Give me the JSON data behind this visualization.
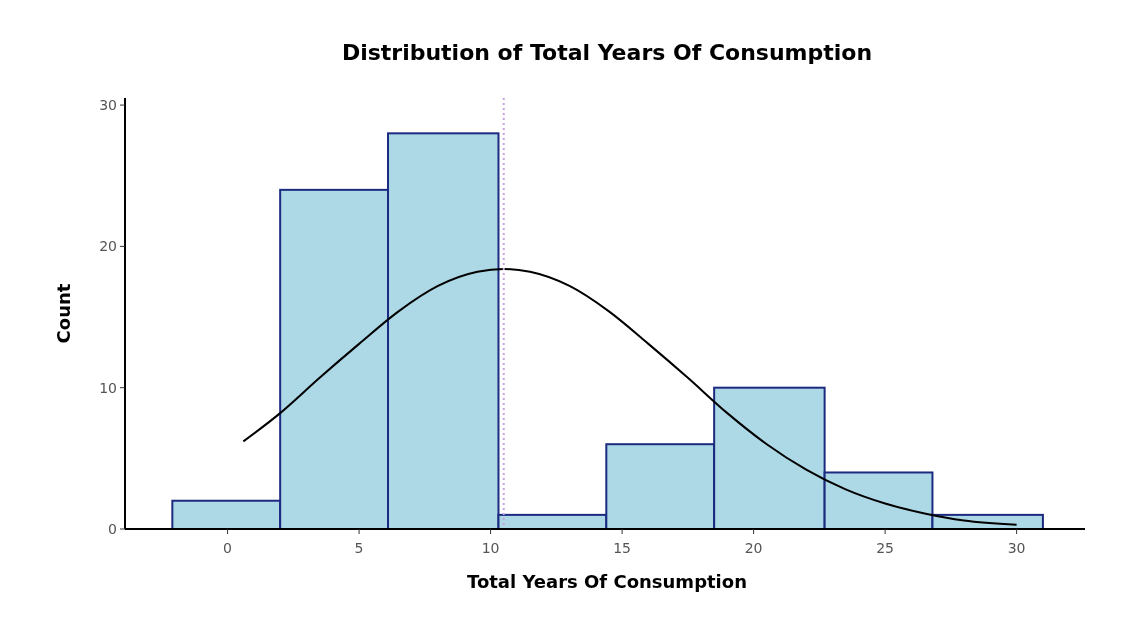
{
  "chart_data": {
    "type": "histogram",
    "title": "Distribution of Total Years Of Consumption",
    "xlabel": "Total Years Of Consumption",
    "ylabel": "Count",
    "xlim": [
      -3.9,
      32.6
    ],
    "xticks": [
      0,
      5,
      10,
      15,
      20,
      25,
      30
    ],
    "ylim": [
      0,
      30.5
    ],
    "yticks": [
      0,
      10,
      20,
      30
    ],
    "series": [
      {
        "color": "#add8e6",
        "bins": [
          -2.1,
          2.0,
          6.1,
          10.3,
          14.4,
          18.5,
          22.7,
          26.8,
          31.0
        ],
        "values": [
          2,
          24,
          28,
          1,
          6,
          10,
          4,
          1
        ]
      },
      {
        "type": "line",
        "color": "#000000",
        "x": [
          0.6,
          2,
          3.5,
          5,
          6.5,
          8,
          9.5,
          10.5,
          11.5,
          13,
          14.5,
          16,
          17.5,
          19,
          20.5,
          22,
          23.5,
          25,
          26.5,
          28,
          30
        ],
        "values": [
          6.2,
          8.2,
          10.7,
          13.1,
          15.4,
          17.2,
          18.2,
          18.4,
          18.2,
          17.2,
          15.4,
          13.1,
          10.7,
          8.2,
          6.0,
          4.2,
          2.8,
          1.8,
          1.1,
          0.6,
          0.3
        ]
      }
    ],
    "ref_lines": [
      {
        "axis": "x",
        "value": 10.5,
        "color": "#c8a2e0",
        "line_style": "dotted"
      }
    ]
  }
}
